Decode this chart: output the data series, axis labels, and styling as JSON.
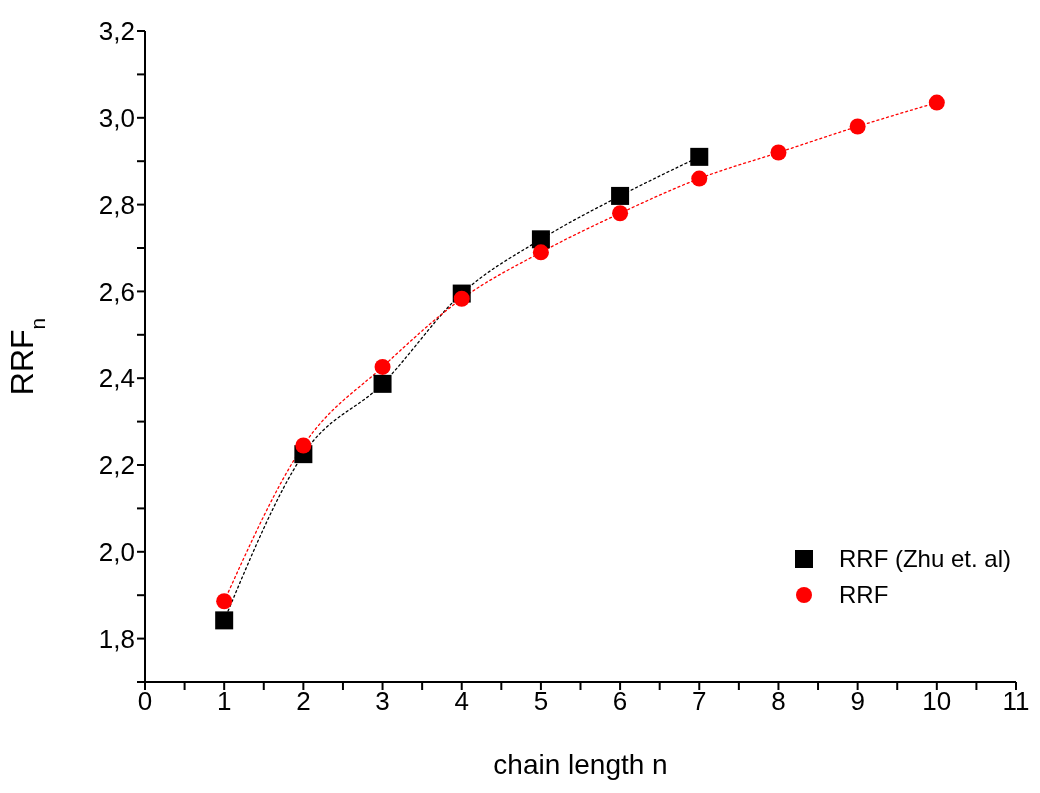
{
  "chart_data": {
    "type": "scatter",
    "xlabel": "chain length n",
    "ylabel": "RRF$_{n}$",
    "xlim": [
      0,
      11
    ],
    "ylim": [
      1.7,
      3.2
    ],
    "xticks": [
      0,
      {
        "value": 0.5,
        "label": null
      },
      1,
      {
        "value": 1.5,
        "label": null
      },
      2,
      {
        "value": 2.5,
        "label": null
      },
      3,
      {
        "value": 3.5,
        "label": null
      },
      4,
      {
        "value": 4.5,
        "label": null
      },
      5,
      {
        "value": 5.5,
        "label": null
      },
      6,
      {
        "value": 6.5,
        "label": null
      },
      7,
      {
        "value": 7.5,
        "label": null
      },
      8,
      {
        "value": 8.5,
        "label": null
      },
      9,
      {
        "value": 9.5,
        "label": null
      },
      10,
      {
        "value": 10.5,
        "label": null
      },
      11
    ],
    "yticks": [
      {
        "value": 1.7,
        "label": null
      },
      {
        "value": 1.8,
        "label": "1,8"
      },
      {
        "value": 1.9,
        "label": null
      },
      {
        "value": 2.0,
        "label": "2,0"
      },
      {
        "value": 2.1,
        "label": null
      },
      {
        "value": 2.2,
        "label": "2,2"
      },
      {
        "value": 2.3,
        "label": null
      },
      {
        "value": 2.4,
        "label": "2,4"
      },
      {
        "value": 2.5,
        "label": null
      },
      {
        "value": 2.6,
        "label": "2,6"
      },
      {
        "value": 2.7,
        "label": null
      },
      {
        "value": 2.8,
        "label": "2,8"
      },
      {
        "value": 2.9,
        "label": null
      },
      {
        "value": 3.0,
        "label": "3,0"
      },
      {
        "value": 3.1,
        "label": null
      },
      {
        "value": 3.2,
        "label": "3,2"
      }
    ],
    "grid": false,
    "legend": "bottom right",
    "series": [
      {
        "name": "RRF (Zhu et. al)",
        "color": "#000000",
        "marker": "square",
        "x": [
          1,
          2,
          3,
          4,
          5,
          6,
          7
        ],
        "values": [
          1.842,
          2.225,
          2.387,
          2.595,
          2.72,
          2.82,
          2.91
        ]
      },
      {
        "name": "RRF",
        "color": "#ff0000",
        "marker": "circle",
        "x": [
          1,
          2,
          3,
          4,
          5,
          6,
          7,
          8,
          9,
          10
        ],
        "values": [
          1.886,
          2.245,
          2.426,
          2.583,
          2.69,
          2.78,
          2.86,
          2.92,
          2.98,
          3.035
        ]
      },
      {
        "type": "line",
        "color": "#000000",
        "marker": "none",
        "line_style": "dotted",
        "x": [
          1,
          2,
          3,
          4,
          5,
          6,
          7
        ],
        "values": [
          1.842,
          2.225,
          2.387,
          2.595,
          2.72,
          2.82,
          2.91
        ]
      },
      {
        "type": "line",
        "color": "#ff0000",
        "marker": "none",
        "line_style": "dotted",
        "x": [
          1,
          2,
          3,
          4,
          5,
          6,
          7,
          8,
          9,
          10
        ],
        "values": [
          1.886,
          2.245,
          2.426,
          2.583,
          2.69,
          2.78,
          2.86,
          2.92,
          2.98,
          3.035
        ]
      }
    ]
  }
}
